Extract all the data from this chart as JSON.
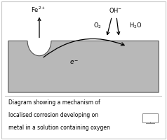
{
  "caption_line1": "Diagram showing a mechanism of",
  "caption_line2": "localised corrosion developing on",
  "caption_line3": "metal in a solution containing oxygen",
  "metal_color": "#b8b8b8",
  "bg_color": "#ffffff",
  "border_color": "#c8c8c8",
  "fe_label": "Fe$^{2+}$",
  "oh_label": "OH$^{-}$",
  "o2_label": "O$_2$",
  "h2o_label": "H$_2$O",
  "e_label": "e$^-$"
}
